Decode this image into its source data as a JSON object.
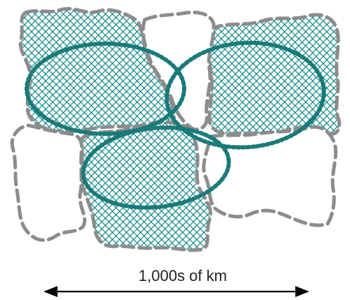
{
  "scale_bar": {
    "label": "1,000s of km"
  },
  "colors": {
    "patch_boundary": "#8c8c8c",
    "hatch": "#1f8f8f",
    "range_outline": "#1a7a7a",
    "arrow": "#000000"
  },
  "legend_elements": {
    "habitat_patch": "dashed-gray-outline",
    "occupied_patch": "teal-crosshatch-fill",
    "population_range": "teal-dotted-ellipse"
  }
}
